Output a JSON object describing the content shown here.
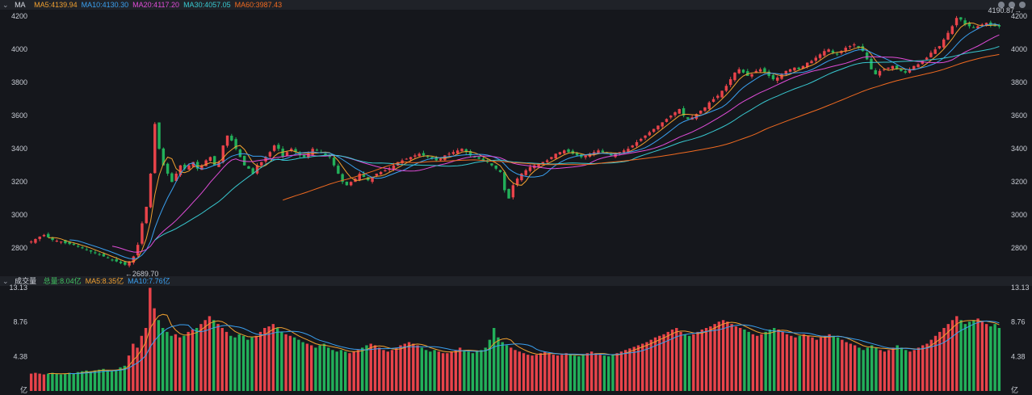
{
  "main_header": {
    "chevron": "⌄",
    "title": "MA",
    "items": [
      {
        "label": "MA5:4139.94",
        "color": "#f0a030"
      },
      {
        "label": "MA10:4130.30",
        "color": "#3aa0f0"
      },
      {
        "label": "MA20:4117.20",
        "color": "#e04cd8"
      },
      {
        "label": "MA30:4057.05",
        "color": "#38c8d0"
      },
      {
        "label": "MA60:3987.43",
        "color": "#f06a20"
      }
    ]
  },
  "vol_header": {
    "chevron": "⌄",
    "title": "成交量",
    "items": [
      {
        "label": "总量:8.04亿",
        "color": "#40c060"
      },
      {
        "label": "MA5:8.35亿",
        "color": "#f0a030"
      },
      {
        "label": "MA10:7.76亿",
        "color": "#3aa0f0"
      }
    ]
  },
  "icons": [
    "minus-icon",
    "plus-icon",
    "settings-icon"
  ],
  "colors": {
    "up": "#e8434a",
    "down": "#22b05a",
    "background": "#15171c"
  },
  "chart_data": [
    {
      "type": "candlestick",
      "title": "MA",
      "ylim": [
        2650,
        4230
      ],
      "yticks": [
        "4200",
        "4000",
        "3800",
        "3600",
        "3400",
        "3200",
        "3000",
        "2800"
      ],
      "ytick_values": [
        4200,
        4000,
        3800,
        3600,
        3400,
        3200,
        3000,
        2800
      ],
      "annotations": [
        {
          "text": "←2689.70",
          "value": 2689.7,
          "bar_index": 22
        },
        {
          "text": "4190.87→",
          "value": 4190.87,
          "bar_index": 233
        }
      ],
      "closes_approx": [
        2840,
        2855,
        2870,
        2880,
        2865,
        2850,
        2845,
        2840,
        2830,
        2825,
        2820,
        2810,
        2800,
        2790,
        2780,
        2770,
        2760,
        2750,
        2740,
        2730,
        2720,
        2710,
        2700,
        2720,
        2750,
        2820,
        2950,
        3050,
        3250,
        3550,
        3400,
        3300,
        3250,
        3200,
        3250,
        3300,
        3280,
        3300,
        3320,
        3280,
        3300,
        3330,
        3350,
        3300,
        3320,
        3420,
        3480,
        3450,
        3400,
        3350,
        3300,
        3280,
        3250,
        3300,
        3320,
        3350,
        3380,
        3420,
        3400,
        3350,
        3380,
        3400,
        3380,
        3360,
        3350,
        3370,
        3400,
        3390,
        3380,
        3360,
        3350,
        3300,
        3250,
        3200,
        3180,
        3200,
        3220,
        3250,
        3230,
        3210,
        3230,
        3250,
        3260,
        3270,
        3280,
        3300,
        3320,
        3330,
        3340,
        3350,
        3360,
        3370,
        3360,
        3350,
        3340,
        3330,
        3340,
        3360,
        3370,
        3380,
        3390,
        3400,
        3380,
        3360,
        3350,
        3340,
        3330,
        3320,
        3300,
        3280,
        3260,
        3150,
        3100,
        3180,
        3220,
        3250,
        3270,
        3290,
        3300,
        3310,
        3320,
        3330,
        3350,
        3370,
        3380,
        3390,
        3380,
        3370,
        3360,
        3350,
        3360,
        3370,
        3380,
        3390,
        3380,
        3370,
        3360,
        3370,
        3380,
        3390,
        3400,
        3420,
        3440,
        3460,
        3480,
        3500,
        3520,
        3540,
        3560,
        3580,
        3600,
        3620,
        3640,
        3600,
        3580,
        3590,
        3610,
        3630,
        3650,
        3680,
        3700,
        3720,
        3750,
        3780,
        3820,
        3860,
        3880,
        3860,
        3840,
        3850,
        3870,
        3880,
        3860,
        3840,
        3820,
        3830,
        3850,
        3870,
        3880,
        3890,
        3880,
        3900,
        3920,
        3930,
        3950,
        3970,
        3990,
        4000,
        3980,
        3970,
        3990,
        4010,
        4020,
        4030,
        4010,
        3990,
        3940,
        3880,
        3850,
        3870,
        3880,
        3890,
        3900,
        3880,
        3870,
        3860,
        3880,
        3900,
        3910,
        3930,
        3950,
        3980,
        4000,
        4020,
        4060,
        4100,
        4140,
        4190,
        4180,
        4150,
        4140,
        4130,
        4140,
        4150,
        4160,
        4145,
        4140,
        4138
      ],
      "series": [
        {
          "name": "MA5",
          "value": 4139.94
        },
        {
          "name": "MA10",
          "value": 4130.3
        },
        {
          "name": "MA20",
          "value": 4117.2
        },
        {
          "name": "MA30",
          "value": 4057.05
        },
        {
          "name": "MA60",
          "value": 3987.43
        }
      ]
    },
    {
      "type": "bar",
      "title": "成交量",
      "unit": "亿",
      "ylim": [
        0,
        13.13
      ],
      "yticks": [
        "13.13",
        "8.76",
        "4.38"
      ],
      "ytick_values": [
        13.13,
        8.76,
        4.38
      ],
      "unit_label": "亿",
      "values_approx": [
        2.2,
        2.3,
        2.2,
        2.1,
        2.2,
        2.3,
        2.2,
        2.1,
        2.2,
        2.3,
        2.2,
        2.4,
        2.5,
        2.6,
        2.5,
        2.6,
        2.7,
        2.8,
        2.6,
        2.5,
        2.7,
        3.0,
        3.2,
        4.5,
        6.0,
        5.5,
        7.0,
        8.0,
        13.1,
        10.5,
        9.0,
        8.0,
        7.5,
        7.0,
        7.2,
        6.8,
        7.0,
        7.5,
        7.8,
        8.0,
        8.5,
        9.0,
        9.5,
        9.0,
        8.5,
        8.0,
        7.5,
        7.0,
        6.8,
        7.2,
        7.0,
        6.5,
        6.8,
        7.0,
        7.5,
        8.0,
        8.2,
        8.5,
        8.0,
        7.5,
        7.2,
        7.0,
        6.8,
        6.5,
        6.2,
        6.0,
        5.8,
        5.5,
        5.8,
        6.0,
        5.5,
        5.2,
        5.0,
        5.2,
        5.0,
        4.8,
        5.0,
        5.2,
        5.5,
        5.8,
        6.0,
        5.8,
        5.5,
        5.2,
        5.0,
        5.2,
        5.5,
        5.8,
        6.0,
        6.2,
        6.0,
        5.8,
        5.5,
        5.2,
        5.0,
        5.2,
        5.0,
        4.8,
        4.8,
        5.0,
        5.2,
        5.5,
        5.2,
        5.0,
        4.8,
        5.0,
        5.2,
        5.5,
        6.5,
        8.0,
        6.8,
        6.2,
        5.8,
        5.5,
        5.2,
        5.0,
        4.8,
        4.6,
        4.5,
        4.6,
        4.8,
        5.0,
        4.8,
        4.6,
        4.5,
        4.6,
        4.8,
        4.6,
        4.5,
        4.4,
        4.6,
        4.8,
        5.0,
        4.8,
        4.6,
        4.5,
        4.4,
        4.6,
        4.8,
        5.0,
        5.2,
        5.4,
        5.6,
        5.8,
        6.0,
        6.2,
        6.5,
        6.8,
        7.0,
        7.2,
        7.5,
        7.8,
        8.0,
        7.5,
        7.2,
        7.0,
        7.2,
        7.5,
        7.8,
        8.0,
        8.2,
        8.5,
        8.8,
        9.0,
        8.8,
        8.5,
        8.2,
        8.0,
        7.8,
        7.5,
        7.2,
        7.0,
        7.2,
        7.5,
        7.8,
        8.0,
        7.8,
        7.5,
        7.2,
        7.0,
        6.8,
        7.0,
        7.2,
        7.0,
        6.8,
        6.5,
        6.8,
        7.0,
        7.2,
        7.0,
        6.8,
        6.5,
        6.2,
        6.0,
        5.8,
        5.5,
        5.2,
        5.5,
        5.8,
        5.5,
        5.2,
        5.0,
        5.2,
        5.5,
        5.8,
        5.5,
        5.2,
        5.0,
        5.2,
        5.5,
        5.8,
        6.0,
        6.5,
        7.0,
        7.5,
        8.0,
        8.5,
        9.0,
        9.5,
        9.0,
        8.5,
        8.8,
        9.0,
        9.2,
        8.8,
        8.5,
        8.2,
        8.5,
        8.0
      ]
    }
  ]
}
